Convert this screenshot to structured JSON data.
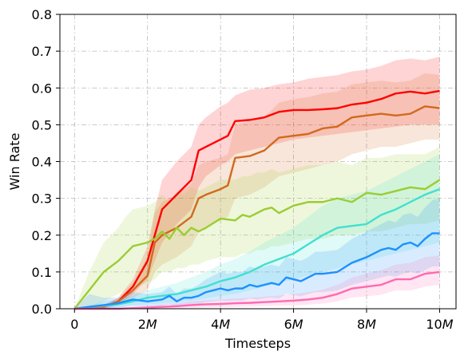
{
  "chart_data": {
    "type": "line",
    "title": "",
    "xlabel": "Timesteps",
    "ylabel": "Win Rate",
    "xlim": [
      -0.4,
      10.45
    ],
    "ylim": [
      0,
      0.8
    ],
    "grid": true,
    "x_ticks": [
      {
        "value": 0,
        "label": "0",
        "italic": false
      },
      {
        "value": 2,
        "label": "2",
        "italic": true
      },
      {
        "value": 4,
        "label": "4",
        "italic": true
      },
      {
        "value": 6,
        "label": "6",
        "italic": true
      },
      {
        "value": 8,
        "label": "8",
        "italic": true
      },
      {
        "value": 10,
        "label": "10",
        "italic": true
      }
    ],
    "x_tick_suffix": "M",
    "y_ticks": [
      {
        "value": 0.0,
        "label": "0.0"
      },
      {
        "value": 0.1,
        "label": "0.1"
      },
      {
        "value": 0.2,
        "label": "0.2"
      },
      {
        "value": 0.3,
        "label": "0.3"
      },
      {
        "value": 0.4,
        "label": "0.4"
      },
      {
        "value": 0.5,
        "label": "0.5"
      },
      {
        "value": 0.6,
        "label": "0.6"
      },
      {
        "value": 0.7,
        "label": "0.7"
      },
      {
        "value": 0.8,
        "label": "0.8"
      }
    ],
    "series": [
      {
        "color": "#ff0000",
        "x": [
          0,
          0.4,
          0.8,
          1.2,
          1.6,
          2.0,
          2.2,
          2.4,
          2.8,
          3.2,
          3.4,
          3.6,
          4.0,
          4.2,
          4.4,
          4.8,
          5.2,
          5.6,
          6.0,
          6.4,
          6.8,
          7.2,
          7.6,
          8.0,
          8.4,
          8.8,
          9.2,
          9.6,
          10.0
        ],
        "y": [
          0.0,
          0.002,
          0.005,
          0.02,
          0.06,
          0.13,
          0.2,
          0.27,
          0.31,
          0.35,
          0.43,
          0.44,
          0.46,
          0.47,
          0.51,
          0.513,
          0.52,
          0.535,
          0.54,
          0.54,
          0.542,
          0.545,
          0.555,
          0.56,
          0.57,
          0.585,
          0.59,
          0.585,
          0.592
        ],
        "lower": [
          0.0,
          0.0,
          0.0,
          0.01,
          0.04,
          0.08,
          0.13,
          0.18,
          0.23,
          0.27,
          0.33,
          0.36,
          0.39,
          0.4,
          0.42,
          0.43,
          0.44,
          0.45,
          0.46,
          0.465,
          0.47,
          0.475,
          0.48,
          0.485,
          0.49,
          0.495,
          0.5,
          0.5,
          0.5
        ],
        "upper": [
          0.0,
          0.005,
          0.01,
          0.03,
          0.08,
          0.17,
          0.27,
          0.35,
          0.4,
          0.44,
          0.5,
          0.52,
          0.55,
          0.56,
          0.58,
          0.595,
          0.6,
          0.61,
          0.615,
          0.625,
          0.63,
          0.635,
          0.645,
          0.65,
          0.66,
          0.675,
          0.68,
          0.675,
          0.685
        ]
      },
      {
        "color": "#d2691e",
        "x": [
          0,
          0.4,
          0.8,
          1.2,
          1.6,
          2.0,
          2.2,
          2.4,
          2.8,
          3.2,
          3.4,
          3.6,
          4.0,
          4.2,
          4.4,
          4.8,
          5.2,
          5.6,
          6.0,
          6.4,
          6.8,
          7.2,
          7.6,
          8.0,
          8.4,
          8.8,
          9.2,
          9.6,
          10.0
        ],
        "y": [
          0.0,
          0.002,
          0.005,
          0.02,
          0.05,
          0.09,
          0.18,
          0.2,
          0.22,
          0.25,
          0.3,
          0.31,
          0.325,
          0.335,
          0.41,
          0.415,
          0.43,
          0.465,
          0.47,
          0.475,
          0.49,
          0.495,
          0.52,
          0.525,
          0.53,
          0.525,
          0.53,
          0.55,
          0.545
        ],
        "lower": [
          0.0,
          0.0,
          0.0,
          0.01,
          0.03,
          0.05,
          0.1,
          0.12,
          0.14,
          0.17,
          0.21,
          0.22,
          0.24,
          0.25,
          0.3,
          0.31,
          0.33,
          0.36,
          0.37,
          0.38,
          0.39,
          0.4,
          0.42,
          0.43,
          0.44,
          0.44,
          0.45,
          0.46,
          0.46
        ],
        "upper": [
          0.0,
          0.005,
          0.01,
          0.03,
          0.07,
          0.14,
          0.26,
          0.29,
          0.31,
          0.34,
          0.39,
          0.4,
          0.41,
          0.42,
          0.5,
          0.51,
          0.52,
          0.56,
          0.57,
          0.575,
          0.585,
          0.59,
          0.61,
          0.615,
          0.62,
          0.615,
          0.62,
          0.64,
          0.635
        ]
      },
      {
        "color": "#9acd32",
        "x": [
          0,
          0.4,
          0.8,
          1.2,
          1.4,
          1.6,
          2.0,
          2.2,
          2.4,
          2.6,
          2.8,
          3.0,
          3.2,
          3.4,
          3.6,
          4.0,
          4.4,
          4.6,
          4.8,
          5.0,
          5.2,
          5.4,
          5.6,
          6.0,
          6.4,
          6.8,
          7.2,
          7.6,
          8.0,
          8.4,
          8.8,
          9.2,
          9.6,
          10.0
        ],
        "y": [
          0.0,
          0.05,
          0.1,
          0.13,
          0.15,
          0.17,
          0.18,
          0.19,
          0.21,
          0.19,
          0.22,
          0.2,
          0.22,
          0.21,
          0.22,
          0.245,
          0.24,
          0.255,
          0.25,
          0.26,
          0.27,
          0.275,
          0.26,
          0.28,
          0.29,
          0.29,
          0.3,
          0.29,
          0.315,
          0.31,
          0.32,
          0.33,
          0.325,
          0.35
        ],
        "lower": [
          0.0,
          0.0,
          0.02,
          0.04,
          0.05,
          0.06,
          0.07,
          0.08,
          0.1,
          0.1,
          0.11,
          0.11,
          0.12,
          0.12,
          0.13,
          0.14,
          0.14,
          0.15,
          0.15,
          0.16,
          0.16,
          0.17,
          0.17,
          0.18,
          0.19,
          0.19,
          0.2,
          0.2,
          0.21,
          0.21,
          0.22,
          0.23,
          0.23,
          0.24
        ],
        "upper": [
          0.0,
          0.1,
          0.18,
          0.22,
          0.25,
          0.27,
          0.28,
          0.29,
          0.31,
          0.29,
          0.32,
          0.31,
          0.33,
          0.32,
          0.33,
          0.35,
          0.35,
          0.36,
          0.36,
          0.37,
          0.37,
          0.38,
          0.37,
          0.38,
          0.39,
          0.39,
          0.4,
          0.39,
          0.41,
          0.41,
          0.42,
          0.42,
          0.42,
          0.44
        ]
      },
      {
        "color": "#40e0d0",
        "x": [
          0,
          0.4,
          0.8,
          1.2,
          1.6,
          2.0,
          2.4,
          2.8,
          3.2,
          3.6,
          4.0,
          4.4,
          4.8,
          5.2,
          5.6,
          6.0,
          6.4,
          6.8,
          7.2,
          7.6,
          8.0,
          8.4,
          8.8,
          9.2,
          9.6,
          10.0
        ],
        "y": [
          0.0,
          0.005,
          0.008,
          0.012,
          0.02,
          0.03,
          0.035,
          0.04,
          0.05,
          0.06,
          0.075,
          0.085,
          0.1,
          0.12,
          0.135,
          0.15,
          0.175,
          0.2,
          0.22,
          0.225,
          0.23,
          0.255,
          0.27,
          0.29,
          0.31,
          0.325
        ],
        "lower": [
          0.0,
          0.0,
          0.0,
          0.003,
          0.008,
          0.012,
          0.015,
          0.018,
          0.022,
          0.028,
          0.035,
          0.04,
          0.05,
          0.06,
          0.07,
          0.08,
          0.09,
          0.1,
          0.11,
          0.12,
          0.13,
          0.14,
          0.15,
          0.16,
          0.17,
          0.18
        ],
        "upper": [
          0.0,
          0.01,
          0.02,
          0.025,
          0.035,
          0.05,
          0.06,
          0.07,
          0.085,
          0.1,
          0.12,
          0.135,
          0.155,
          0.18,
          0.2,
          0.22,
          0.25,
          0.28,
          0.3,
          0.31,
          0.32,
          0.34,
          0.36,
          0.38,
          0.4,
          0.42
        ]
      },
      {
        "color": "#1e90ff",
        "x": [
          0,
          0.4,
          0.8,
          1.2,
          1.6,
          2.0,
          2.4,
          2.6,
          2.8,
          3.0,
          3.2,
          3.4,
          3.6,
          3.8,
          4.0,
          4.2,
          4.4,
          4.6,
          4.8,
          5.0,
          5.2,
          5.4,
          5.6,
          5.8,
          6.0,
          6.2,
          6.4,
          6.6,
          6.8,
          7.2,
          7.6,
          8.0,
          8.2,
          8.4,
          8.6,
          8.8,
          9.0,
          9.2,
          9.4,
          9.6,
          9.8,
          10.0
        ],
        "y": [
          0.0,
          0.005,
          0.01,
          0.015,
          0.025,
          0.02,
          0.025,
          0.035,
          0.02,
          0.03,
          0.03,
          0.035,
          0.045,
          0.05,
          0.055,
          0.05,
          0.055,
          0.055,
          0.065,
          0.06,
          0.065,
          0.07,
          0.065,
          0.085,
          0.08,
          0.075,
          0.085,
          0.095,
          0.095,
          0.1,
          0.125,
          0.14,
          0.15,
          0.16,
          0.165,
          0.16,
          0.175,
          0.18,
          0.17,
          0.19,
          0.205,
          0.205
        ],
        "lower": [
          0.0,
          0.0,
          0.0,
          0.003,
          0.008,
          0.005,
          0.008,
          0.012,
          0.005,
          0.01,
          0.01,
          0.012,
          0.018,
          0.02,
          0.022,
          0.02,
          0.022,
          0.022,
          0.028,
          0.025,
          0.028,
          0.03,
          0.028,
          0.04,
          0.037,
          0.034,
          0.04,
          0.045,
          0.045,
          0.05,
          0.065,
          0.075,
          0.08,
          0.085,
          0.09,
          0.087,
          0.095,
          0.1,
          0.095,
          0.105,
          0.115,
          0.115
        ],
        "upper": [
          0.0,
          0.04,
          0.03,
          0.03,
          0.045,
          0.04,
          0.045,
          0.06,
          0.04,
          0.055,
          0.055,
          0.065,
          0.08,
          0.09,
          0.1,
          0.095,
          0.1,
          0.1,
          0.115,
          0.11,
          0.115,
          0.12,
          0.115,
          0.14,
          0.135,
          0.13,
          0.14,
          0.155,
          0.155,
          0.16,
          0.19,
          0.21,
          0.22,
          0.23,
          0.24,
          0.235,
          0.255,
          0.26,
          0.25,
          0.275,
          0.295,
          0.3
        ]
      },
      {
        "color": "#ff69b4",
        "x": [
          0,
          0.4,
          0.8,
          1.2,
          1.6,
          2.0,
          2.4,
          2.8,
          3.2,
          3.6,
          4.0,
          4.4,
          4.8,
          5.2,
          5.6,
          6.0,
          6.4,
          6.8,
          7.2,
          7.6,
          8.0,
          8.4,
          8.8,
          9.2,
          9.6,
          10.0
        ],
        "y": [
          0.0,
          0.0,
          0.0,
          0.0,
          0.002,
          0.003,
          0.005,
          0.007,
          0.01,
          0.012,
          0.013,
          0.015,
          0.016,
          0.018,
          0.02,
          0.022,
          0.025,
          0.03,
          0.04,
          0.055,
          0.06,
          0.065,
          0.08,
          0.08,
          0.095,
          0.1
        ],
        "lower": [
          0.0,
          0.0,
          0.0,
          0.0,
          0.0,
          0.0,
          0.0,
          0.001,
          0.002,
          0.003,
          0.004,
          0.005,
          0.006,
          0.007,
          0.008,
          0.009,
          0.011,
          0.014,
          0.02,
          0.03,
          0.034,
          0.038,
          0.05,
          0.05,
          0.06,
          0.065
        ],
        "upper": [
          0.0,
          0.0,
          0.0,
          0.0,
          0.005,
          0.008,
          0.012,
          0.015,
          0.02,
          0.023,
          0.025,
          0.028,
          0.03,
          0.033,
          0.036,
          0.04,
          0.045,
          0.052,
          0.065,
          0.085,
          0.095,
          0.105,
          0.12,
          0.125,
          0.14,
          0.145
        ]
      }
    ]
  }
}
